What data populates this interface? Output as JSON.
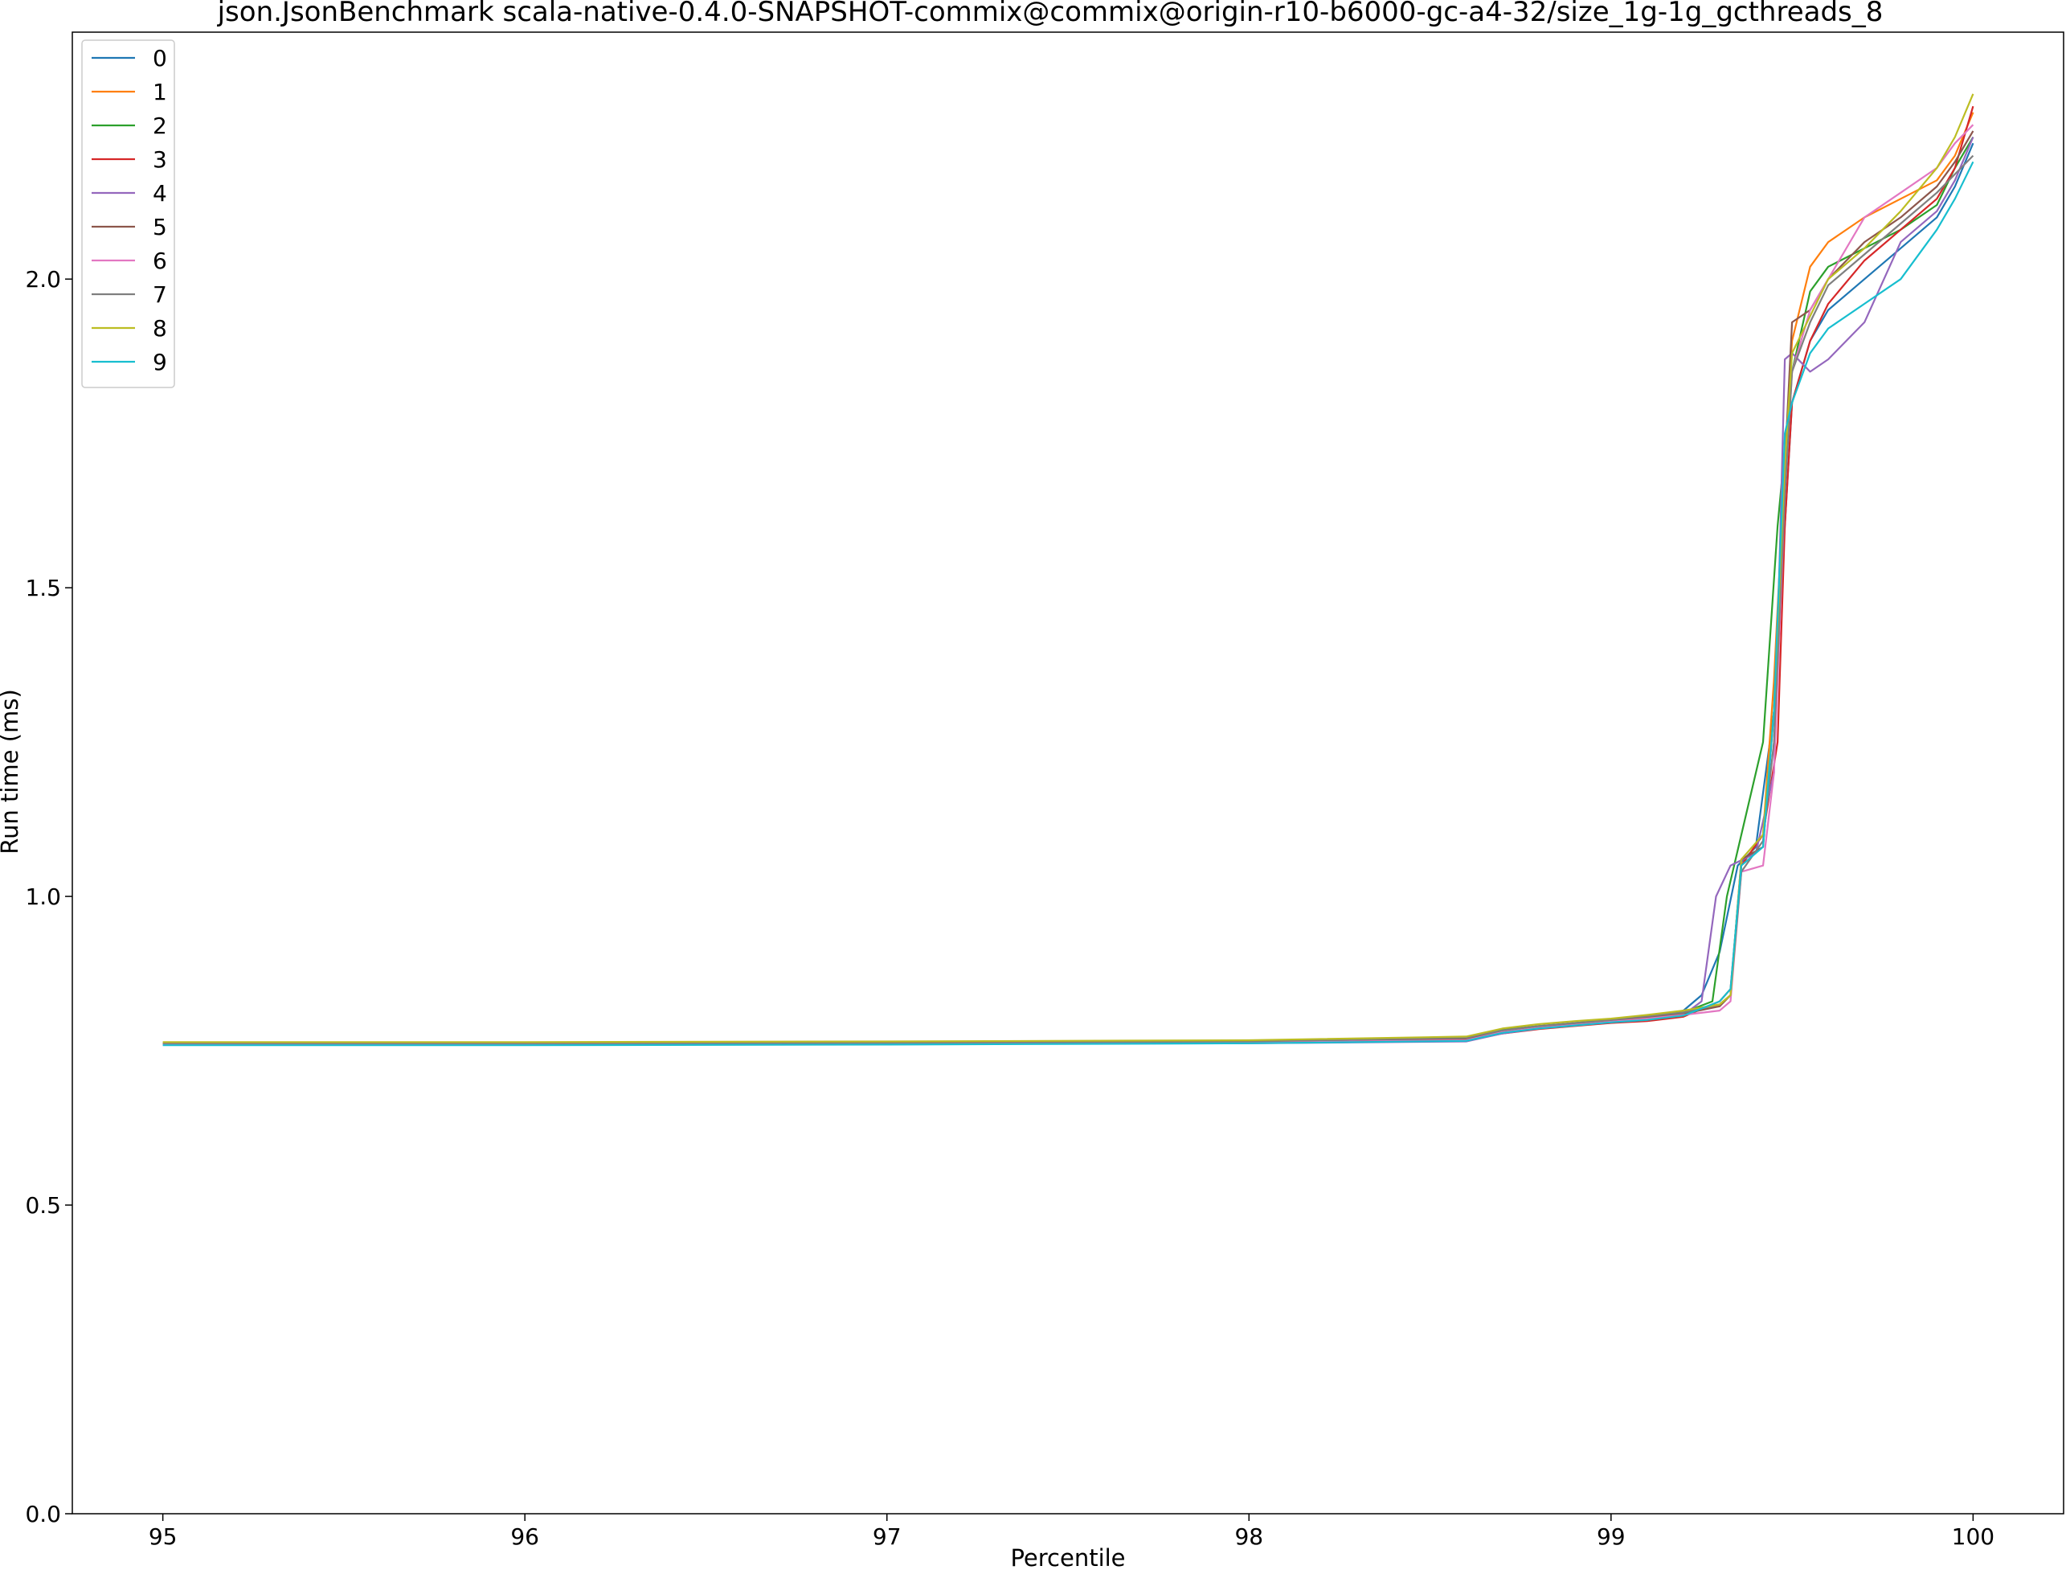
{
  "chart_data": {
    "type": "line",
    "title": "json.JsonBenchmark scala-native-0.4.0-SNAPSHOT-commix@commix@origin-r10-b6000-gc-a4-32/size_1g-1g_gcthreads_8",
    "xlabel": "Percentile",
    "ylabel": "Run time (ms)",
    "xlim": [
      94.75,
      100.25
    ],
    "ylim": [
      0.0,
      2.4
    ],
    "xticks": [
      95,
      96,
      97,
      98,
      99,
      100
    ],
    "yticks": [
      0.0,
      0.5,
      1.0,
      1.5,
      2.0
    ],
    "xtick_labels": [
      "95",
      "96",
      "97",
      "98",
      "99",
      "100"
    ],
    "ytick_labels": [
      "0.0",
      "0.5",
      "1.0",
      "1.5",
      "2.0"
    ],
    "grid": false,
    "legend_position": "top-left",
    "series": [
      {
        "name": "0",
        "color": "#1f77b4",
        "points": [
          [
            95,
            0.76
          ],
          [
            96,
            0.76
          ],
          [
            97,
            0.761
          ],
          [
            98,
            0.763
          ],
          [
            98.6,
            0.768
          ],
          [
            98.7,
            0.78
          ],
          [
            98.8,
            0.787
          ],
          [
            98.9,
            0.792
          ],
          [
            99.0,
            0.797
          ],
          [
            99.1,
            0.803
          ],
          [
            99.2,
            0.815
          ],
          [
            99.25,
            0.84
          ],
          [
            99.3,
            0.91
          ],
          [
            99.35,
            1.05
          ],
          [
            99.4,
            1.08
          ],
          [
            99.45,
            1.3
          ],
          [
            99.48,
            1.6
          ],
          [
            99.5,
            1.8
          ],
          [
            99.55,
            1.9
          ],
          [
            99.6,
            1.95
          ],
          [
            99.7,
            2.0
          ],
          [
            99.8,
            2.05
          ],
          [
            99.9,
            2.1
          ],
          [
            99.95,
            2.15
          ],
          [
            100,
            2.22
          ]
        ]
      },
      {
        "name": "1",
        "color": "#ff7f0e",
        "points": [
          [
            95,
            0.762
          ],
          [
            96,
            0.762
          ],
          [
            97,
            0.763
          ],
          [
            98,
            0.765
          ],
          [
            98.6,
            0.77
          ],
          [
            98.7,
            0.782
          ],
          [
            98.8,
            0.789
          ],
          [
            98.9,
            0.794
          ],
          [
            99.0,
            0.799
          ],
          [
            99.1,
            0.805
          ],
          [
            99.2,
            0.81
          ],
          [
            99.3,
            0.825
          ],
          [
            99.33,
            0.84
          ],
          [
            99.36,
            1.05
          ],
          [
            99.42,
            1.1
          ],
          [
            99.45,
            1.35
          ],
          [
            99.48,
            1.7
          ],
          [
            99.5,
            1.9
          ],
          [
            99.55,
            2.02
          ],
          [
            99.6,
            2.06
          ],
          [
            99.7,
            2.1
          ],
          [
            99.8,
            2.13
          ],
          [
            99.9,
            2.16
          ],
          [
            99.95,
            2.2
          ],
          [
            100,
            2.27
          ]
        ]
      },
      {
        "name": "2",
        "color": "#2ca02c",
        "points": [
          [
            95,
            0.761
          ],
          [
            96,
            0.761
          ],
          [
            97,
            0.762
          ],
          [
            98,
            0.764
          ],
          [
            98.6,
            0.77
          ],
          [
            98.7,
            0.784
          ],
          [
            98.8,
            0.79
          ],
          [
            98.9,
            0.795
          ],
          [
            99.0,
            0.8
          ],
          [
            99.1,
            0.806
          ],
          [
            99.2,
            0.812
          ],
          [
            99.28,
            0.83
          ],
          [
            99.32,
            1.0
          ],
          [
            99.38,
            1.15
          ],
          [
            99.42,
            1.25
          ],
          [
            99.46,
            1.6
          ],
          [
            99.5,
            1.85
          ],
          [
            99.55,
            1.98
          ],
          [
            99.6,
            2.02
          ],
          [
            99.7,
            2.05
          ],
          [
            99.8,
            2.08
          ],
          [
            99.9,
            2.12
          ],
          [
            99.95,
            2.18
          ],
          [
            100,
            2.23
          ]
        ]
      },
      {
        "name": "3",
        "color": "#d62728",
        "points": [
          [
            95,
            0.76
          ],
          [
            96,
            0.76
          ],
          [
            97,
            0.761
          ],
          [
            98,
            0.763
          ],
          [
            98.6,
            0.766
          ],
          [
            98.7,
            0.778
          ],
          [
            98.8,
            0.785
          ],
          [
            98.9,
            0.79
          ],
          [
            99.0,
            0.795
          ],
          [
            99.1,
            0.798
          ],
          [
            99.2,
            0.805
          ],
          [
            99.3,
            0.83
          ],
          [
            99.33,
            0.85
          ],
          [
            99.36,
            1.05
          ],
          [
            99.42,
            1.1
          ],
          [
            99.46,
            1.25
          ],
          [
            99.48,
            1.6
          ],
          [
            99.5,
            1.8
          ],
          [
            99.55,
            1.9
          ],
          [
            99.6,
            1.96
          ],
          [
            99.7,
            2.03
          ],
          [
            99.8,
            2.08
          ],
          [
            99.9,
            2.13
          ],
          [
            99.95,
            2.18
          ],
          [
            100,
            2.28
          ]
        ]
      },
      {
        "name": "4",
        "color": "#9467bd",
        "points": [
          [
            95,
            0.76
          ],
          [
            96,
            0.76
          ],
          [
            97,
            0.761
          ],
          [
            98,
            0.762
          ],
          [
            98.6,
            0.765
          ],
          [
            98.7,
            0.778
          ],
          [
            98.8,
            0.786
          ],
          [
            98.9,
            0.791
          ],
          [
            99.0,
            0.796
          ],
          [
            99.1,
            0.8
          ],
          [
            99.2,
            0.808
          ],
          [
            99.25,
            0.83
          ],
          [
            99.29,
            1.0
          ],
          [
            99.33,
            1.05
          ],
          [
            99.4,
            1.07
          ],
          [
            99.45,
            1.2
          ],
          [
            99.48,
            1.87
          ],
          [
            99.5,
            1.88
          ],
          [
            99.55,
            1.85
          ],
          [
            99.6,
            1.87
          ],
          [
            99.7,
            1.93
          ],
          [
            99.8,
            2.06
          ],
          [
            99.9,
            2.11
          ],
          [
            99.95,
            2.16
          ],
          [
            100,
            2.23
          ]
        ]
      },
      {
        "name": "5",
        "color": "#8c564b",
        "points": [
          [
            95,
            0.761
          ],
          [
            96,
            0.761
          ],
          [
            97,
            0.762
          ],
          [
            98,
            0.764
          ],
          [
            98.6,
            0.769
          ],
          [
            98.7,
            0.781
          ],
          [
            98.8,
            0.788
          ],
          [
            98.9,
            0.793
          ],
          [
            99.0,
            0.798
          ],
          [
            99.1,
            0.804
          ],
          [
            99.2,
            0.81
          ],
          [
            99.3,
            0.822
          ],
          [
            99.33,
            0.84
          ],
          [
            99.36,
            1.06
          ],
          [
            99.42,
            1.08
          ],
          [
            99.45,
            1.3
          ],
          [
            99.48,
            1.7
          ],
          [
            99.5,
            1.93
          ],
          [
            99.55,
            1.95
          ],
          [
            99.6,
            2.0
          ],
          [
            99.7,
            2.06
          ],
          [
            99.8,
            2.1
          ],
          [
            99.9,
            2.15
          ],
          [
            99.95,
            2.19
          ],
          [
            100,
            2.24
          ]
        ]
      },
      {
        "name": "6",
        "color": "#e377c2",
        "points": [
          [
            95,
            0.76
          ],
          [
            96,
            0.76
          ],
          [
            97,
            0.761
          ],
          [
            98,
            0.763
          ],
          [
            98.6,
            0.767
          ],
          [
            98.7,
            0.78
          ],
          [
            98.8,
            0.787
          ],
          [
            98.9,
            0.792
          ],
          [
            99.0,
            0.797
          ],
          [
            99.1,
            0.802
          ],
          [
            99.2,
            0.808
          ],
          [
            99.3,
            0.815
          ],
          [
            99.33,
            0.83
          ],
          [
            99.36,
            1.04
          ],
          [
            99.42,
            1.05
          ],
          [
            99.45,
            1.2
          ],
          [
            99.48,
            1.65
          ],
          [
            99.5,
            1.85
          ],
          [
            99.55,
            1.95
          ],
          [
            99.6,
            2.0
          ],
          [
            99.7,
            2.1
          ],
          [
            99.8,
            2.14
          ],
          [
            99.9,
            2.18
          ],
          [
            99.95,
            2.22
          ],
          [
            100,
            2.25
          ]
        ]
      },
      {
        "name": "7",
        "color": "#7f7f7f",
        "points": [
          [
            95,
            0.762
          ],
          [
            96,
            0.762
          ],
          [
            97,
            0.763
          ],
          [
            98,
            0.765
          ],
          [
            98.6,
            0.771
          ],
          [
            98.7,
            0.783
          ],
          [
            98.8,
            0.79
          ],
          [
            98.9,
            0.795
          ],
          [
            99.0,
            0.8
          ],
          [
            99.1,
            0.806
          ],
          [
            99.2,
            0.812
          ],
          [
            99.3,
            0.825
          ],
          [
            99.33,
            0.84
          ],
          [
            99.36,
            1.04
          ],
          [
            99.42,
            1.09
          ],
          [
            99.45,
            1.25
          ],
          [
            99.48,
            1.65
          ],
          [
            99.5,
            1.85
          ],
          [
            99.55,
            1.93
          ],
          [
            99.6,
            1.99
          ],
          [
            99.7,
            2.04
          ],
          [
            99.8,
            2.09
          ],
          [
            99.9,
            2.14
          ],
          [
            99.95,
            2.17
          ],
          [
            100,
            2.2
          ]
        ]
      },
      {
        "name": "8",
        "color": "#bcbd22",
        "points": [
          [
            95,
            0.764
          ],
          [
            96,
            0.764
          ],
          [
            97,
            0.765
          ],
          [
            98,
            0.767
          ],
          [
            98.6,
            0.773
          ],
          [
            98.7,
            0.786
          ],
          [
            98.8,
            0.793
          ],
          [
            98.9,
            0.798
          ],
          [
            99.0,
            0.802
          ],
          [
            99.1,
            0.808
          ],
          [
            99.2,
            0.815
          ],
          [
            99.3,
            0.825
          ],
          [
            99.33,
            0.84
          ],
          [
            99.36,
            1.06
          ],
          [
            99.42,
            1.1
          ],
          [
            99.45,
            1.3
          ],
          [
            99.48,
            1.7
          ],
          [
            99.5,
            1.88
          ],
          [
            99.55,
            1.94
          ],
          [
            99.6,
            2.0
          ],
          [
            99.7,
            2.05
          ],
          [
            99.8,
            2.11
          ],
          [
            99.9,
            2.18
          ],
          [
            99.95,
            2.23
          ],
          [
            100,
            2.3
          ]
        ]
      },
      {
        "name": "9",
        "color": "#17becf",
        "points": [
          [
            95,
            0.759
          ],
          [
            96,
            0.759
          ],
          [
            97,
            0.76
          ],
          [
            98,
            0.762
          ],
          [
            98.6,
            0.766
          ],
          [
            98.7,
            0.779
          ],
          [
            98.8,
            0.786
          ],
          [
            98.9,
            0.791
          ],
          [
            99.0,
            0.796
          ],
          [
            99.1,
            0.8
          ],
          [
            99.2,
            0.807
          ],
          [
            99.3,
            0.83
          ],
          [
            99.33,
            0.85
          ],
          [
            99.36,
            1.05
          ],
          [
            99.42,
            1.08
          ],
          [
            99.45,
            1.3
          ],
          [
            99.48,
            1.75
          ],
          [
            99.5,
            1.8
          ],
          [
            99.55,
            1.88
          ],
          [
            99.6,
            1.92
          ],
          [
            99.7,
            1.96
          ],
          [
            99.8,
            2.0
          ],
          [
            99.9,
            2.08
          ],
          [
            99.95,
            2.13
          ],
          [
            100,
            2.19
          ]
        ]
      }
    ]
  }
}
